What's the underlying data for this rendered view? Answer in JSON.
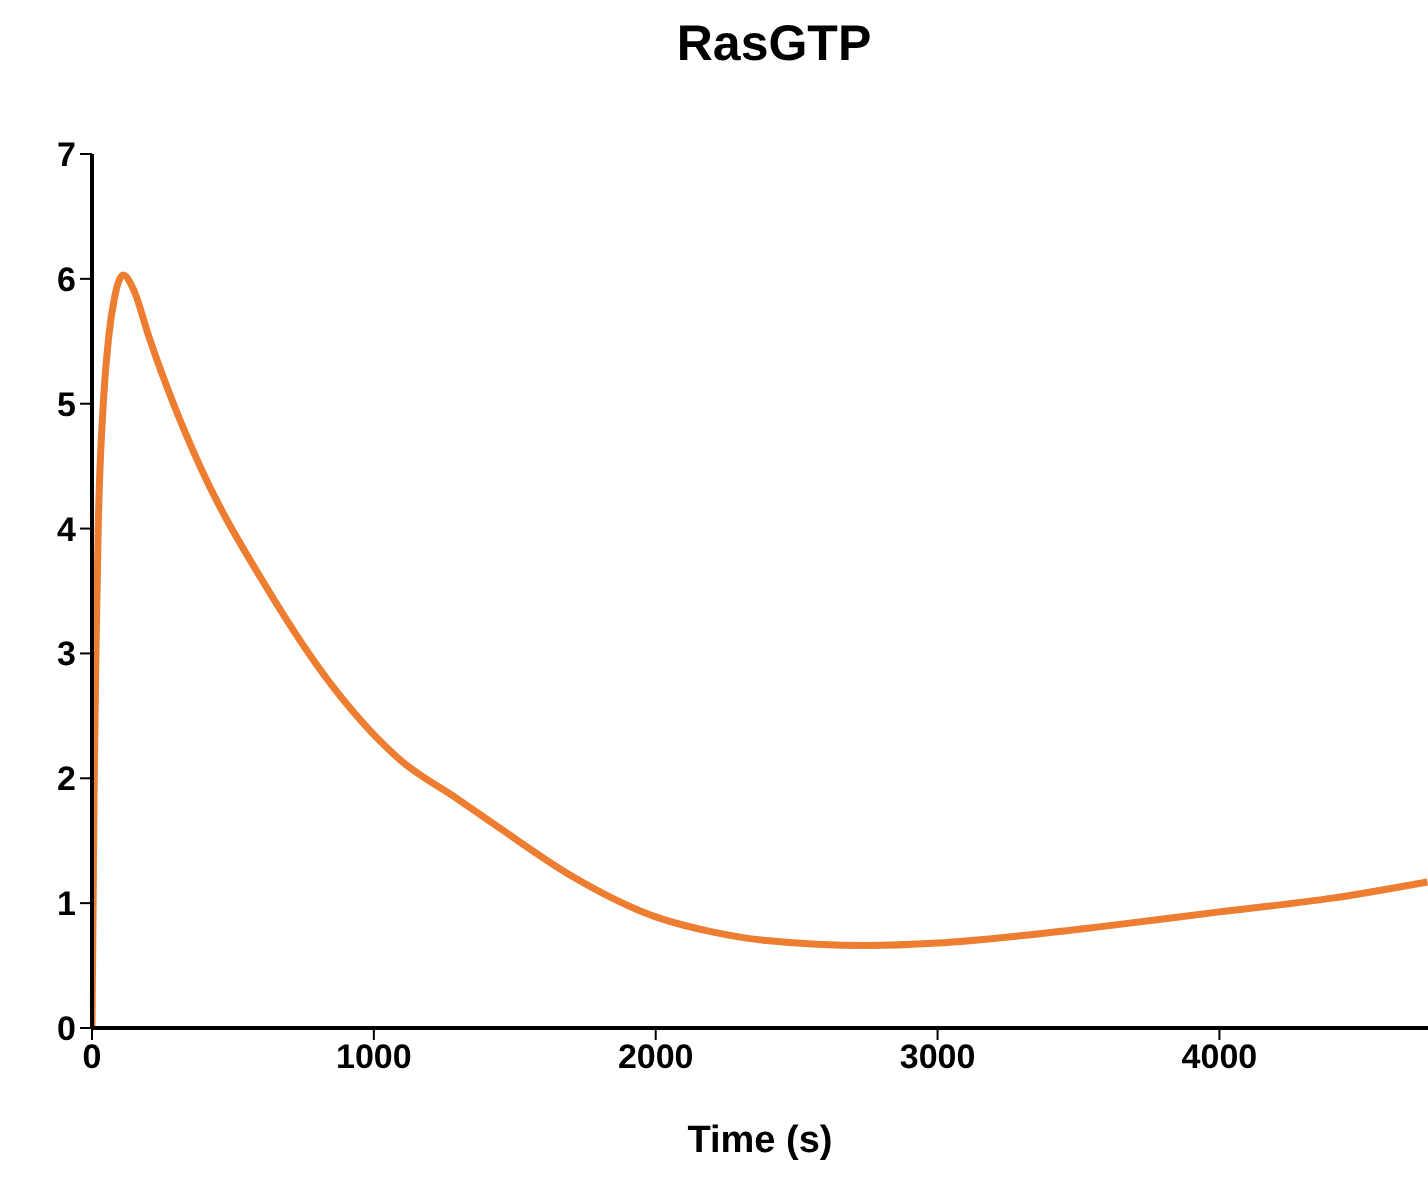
{
  "chart_data": {
    "type": "line",
    "title": "RasGTP",
    "xlabel": "Time (s)",
    "x": [
      0,
      4,
      8,
      14,
      22,
      40,
      60,
      80,
      111,
      150,
      200,
      265,
      383,
      619,
      856,
      1092,
      1300,
      1447,
      1700,
      2000,
      2200,
      2393,
      2747,
      3000,
      3300,
      3574,
      4000,
      4400,
      4738
    ],
    "series": [
      {
        "color": "#ed7d31",
        "values": [
          0,
          1,
          2,
          3,
          4,
          5,
          5.55,
          5.85,
          6.03,
          5.9,
          5.55,
          5.14,
          4.5,
          3.53,
          2.73,
          2.15,
          1.83,
          1.6,
          1.22,
          0.89,
          0.77,
          0.7,
          0.66,
          0.68,
          0.74,
          0.81,
          0.93,
          1.04,
          1.17
        ]
      }
    ],
    "xlim": [
      0,
      4740
    ],
    "xticks": [
      0,
      1000,
      2000,
      3000,
      4000
    ],
    "ylim": [
      0,
      7
    ],
    "yticks": [
      0,
      1,
      2,
      3,
      4,
      5,
      6,
      7
    ],
    "grid": false,
    "legend": false,
    "marker": "none",
    "line_style": "solid"
  }
}
